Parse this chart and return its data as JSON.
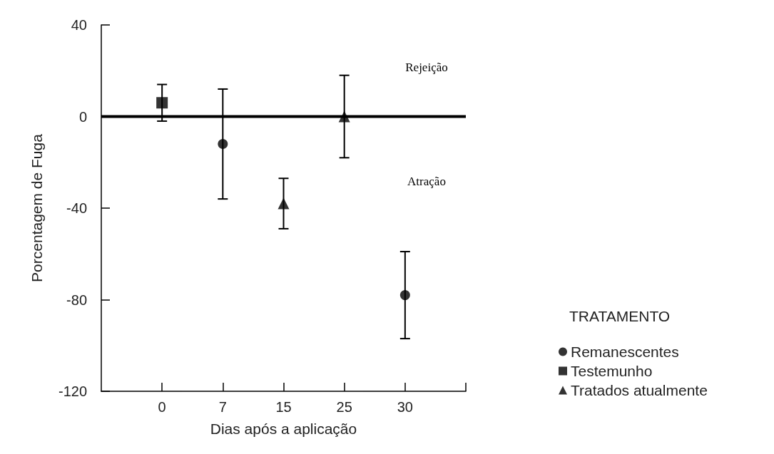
{
  "chart_data": {
    "type": "scatter",
    "xlabel": "Dias após a aplicação",
    "ylabel": "Porcentagem de Fuga",
    "legend_title": "TRATAMENTO",
    "legend": "right",
    "grid": false,
    "categories": [
      "0",
      "7",
      "15",
      "25",
      "30"
    ],
    "ylim": [
      -120,
      40
    ],
    "yticks": [
      -120,
      -80,
      -40,
      0,
      40
    ],
    "series": [
      {
        "name": "Remanescentes",
        "color": "#000000",
        "marker": "circle",
        "x": [
          "7",
          "30"
        ],
        "values": [
          -12,
          -78
        ],
        "errors": [
          [
            -36,
            12
          ],
          [
            -97,
            -59
          ]
        ]
      },
      {
        "name": "Testemunho",
        "color": "#000000",
        "marker": "square",
        "x": [
          "0"
        ],
        "values": [
          6
        ],
        "errors": [
          [
            -2,
            14
          ]
        ]
      },
      {
        "name": "Tratados atualmente",
        "color": "#000000",
        "marker": "triangle",
        "x": [
          "15",
          "25"
        ],
        "values": [
          -38,
          0
        ],
        "errors": [
          [
            -49,
            -27
          ],
          [
            -18,
            18
          ]
        ]
      }
    ],
    "ref_lines": [
      {
        "axis": "y",
        "value": 0,
        "color": "#000000"
      }
    ],
    "annotations": [
      "Rejeição",
      "Atração"
    ]
  }
}
